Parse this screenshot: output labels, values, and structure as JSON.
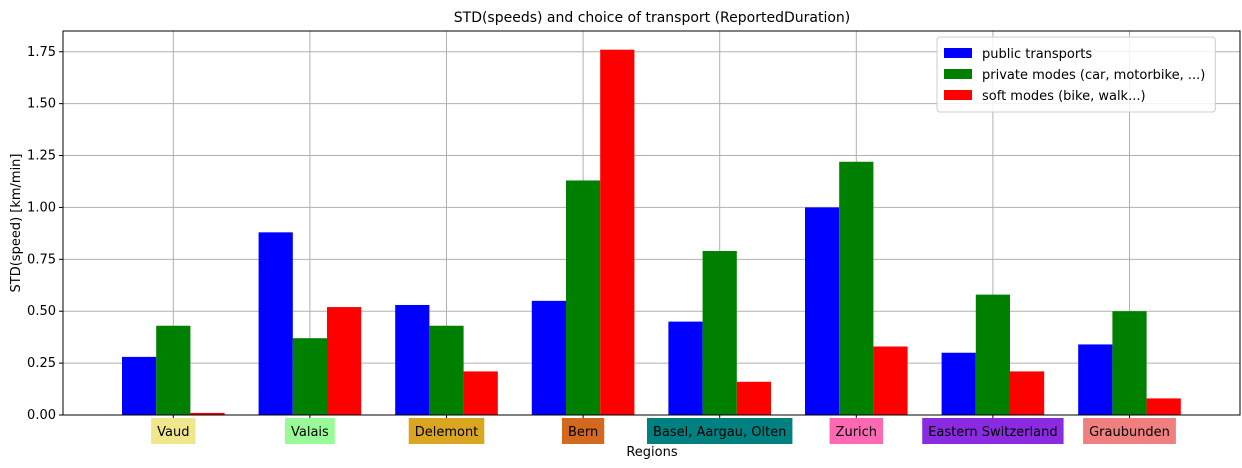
{
  "chart_data": {
    "type": "bar",
    "title": "STD(speeds) and choice of transport (ReportedDuration)",
    "xlabel": "Regions",
    "ylabel": "STD(speed) [km/min]",
    "ylim": [
      0,
      1.85
    ],
    "yticks": [
      "0.00",
      "0.25",
      "0.50",
      "0.75",
      "1.00",
      "1.25",
      "1.50",
      "1.75"
    ],
    "grid": true,
    "legend_position": "top-right",
    "categories": [
      "Vaud",
      "Valais",
      "Delemont",
      "Bern",
      "Basel, Aargau, Olten",
      "Zurich",
      "Eastern Switzerland",
      "Graubunden"
    ],
    "category_colors": [
      "#f0e68c",
      "#98fb98",
      "#daa520",
      "#d2691e",
      "#008080",
      "#ff69b4",
      "#8a2be2",
      "#f08080"
    ],
    "series": [
      {
        "name": "public transports",
        "color": "#0000ff",
        "values": [
          0.28,
          0.88,
          0.53,
          0.55,
          0.45,
          1.0,
          0.3,
          0.34
        ]
      },
      {
        "name": "private modes (car, motorbike, ...)",
        "color": "#008000",
        "values": [
          0.43,
          0.37,
          0.43,
          1.13,
          0.79,
          1.22,
          0.58,
          0.5
        ]
      },
      {
        "name": "soft modes (bike, walk...)",
        "color": "#ff0000",
        "values": [
          0.01,
          0.52,
          0.21,
          1.76,
          0.16,
          0.33,
          0.21,
          0.08
        ]
      }
    ]
  }
}
